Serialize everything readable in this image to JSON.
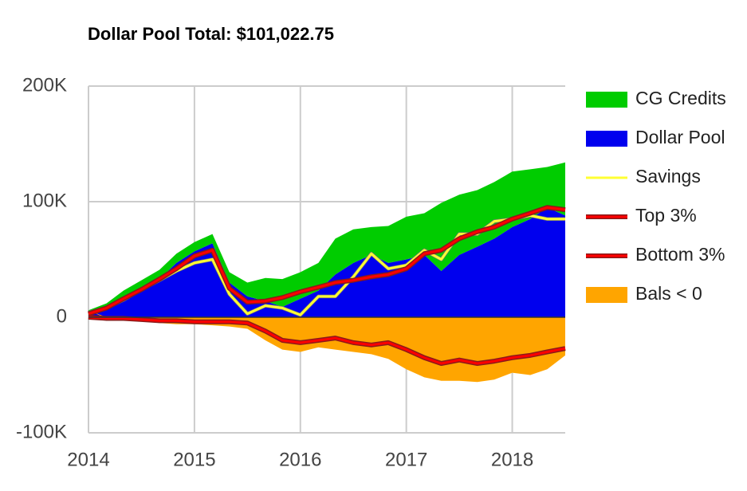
{
  "chart_data": {
    "type": "area",
    "title": "Dollar Pool Total: $101,022.75",
    "x": [
      2014,
      2014.17,
      2014.33,
      2014.5,
      2014.67,
      2014.83,
      2015,
      2015.17,
      2015.33,
      2015.5,
      2015.67,
      2015.83,
      2016,
      2016.17,
      2016.33,
      2016.5,
      2016.67,
      2016.83,
      2017,
      2017.17,
      2017.33,
      2017.5,
      2017.67,
      2017.83,
      2018,
      2018.17,
      2018.33,
      2018.5
    ],
    "stacked": true,
    "grid": true,
    "legend": "right",
    "xlim": [
      2014,
      2018.5
    ],
    "xticks": [
      2014,
      2015,
      2016,
      2017,
      2018
    ],
    "ylim": [
      -100000,
      200000
    ],
    "yticks": [
      {
        "value": -100000,
        "label": "-100K"
      },
      0,
      {
        "value": 100000,
        "label": "100K"
      },
      {
        "value": 200000,
        "label": "200K"
      }
    ],
    "series": [
      {
        "name": "CG Credits",
        "kind": "area",
        "color": "#00cc00",
        "values": [
          4000,
          3000,
          5000,
          6000,
          8000,
          8000,
          8000,
          8000,
          9000,
          12000,
          20000,
          24000,
          23000,
          24000,
          31000,
          29000,
          24000,
          32000,
          37000,
          36000,
          59000,
          52000,
          49000,
          49000,
          48000,
          43000,
          35000,
          46000
        ]
      },
      {
        "name": "Dollar Pool",
        "kind": "area",
        "color": "#0000ee",
        "values": [
          2000,
          9000,
          18000,
          26000,
          33000,
          47000,
          57000,
          64000,
          30000,
          18000,
          14000,
          9000,
          16000,
          23000,
          37000,
          47000,
          54000,
          47000,
          50000,
          54000,
          40000,
          54000,
          61000,
          68000,
          78000,
          85000,
          95000,
          88000
        ]
      },
      {
        "name": "Savings",
        "kind": "line",
        "color": "#ffff33",
        "values": [
          4000,
          8000,
          15000,
          24000,
          32000,
          40000,
          47000,
          50000,
          20000,
          3000,
          10000,
          8000,
          2000,
          18000,
          18000,
          35000,
          55000,
          42000,
          45000,
          58000,
          50000,
          72000,
          72000,
          83000,
          85000,
          88000,
          85000,
          85000
        ]
      },
      {
        "name": "Top 3%",
        "kind": "line",
        "color": "#ff0000",
        "values": [
          3000,
          8000,
          16000,
          24000,
          33000,
          42000,
          53000,
          58000,
          25000,
          13000,
          14000,
          17000,
          22000,
          26000,
          30000,
          32000,
          35000,
          37000,
          42000,
          55000,
          58000,
          68000,
          74000,
          78000,
          85000,
          90000,
          95000,
          93000
        ]
      },
      {
        "name": "Bottom 3%",
        "kind": "line",
        "color": "#ff0000",
        "values": [
          0,
          -1000,
          -1000,
          -2000,
          -3000,
          -3000,
          -4000,
          -4000,
          -4000,
          -5000,
          -12000,
          -20000,
          -22000,
          -20000,
          -18000,
          -22000,
          -24000,
          -22000,
          -28000,
          -35000,
          -40000,
          -37000,
          -40000,
          -38000,
          -35000,
          -33000,
          -30000,
          -27000
        ]
      },
      {
        "name": "Bals < 0",
        "kind": "area",
        "color": "#ffa500",
        "values": [
          0,
          -1000,
          -2000,
          -3000,
          -5000,
          -6000,
          -6000,
          -7000,
          -8000,
          -10000,
          -20000,
          -28000,
          -30000,
          -26000,
          -28000,
          -30000,
          -32000,
          -36000,
          -45000,
          -52000,
          -55000,
          -55000,
          -56000,
          -54000,
          -48000,
          -50000,
          -45000,
          -33000
        ]
      }
    ]
  }
}
